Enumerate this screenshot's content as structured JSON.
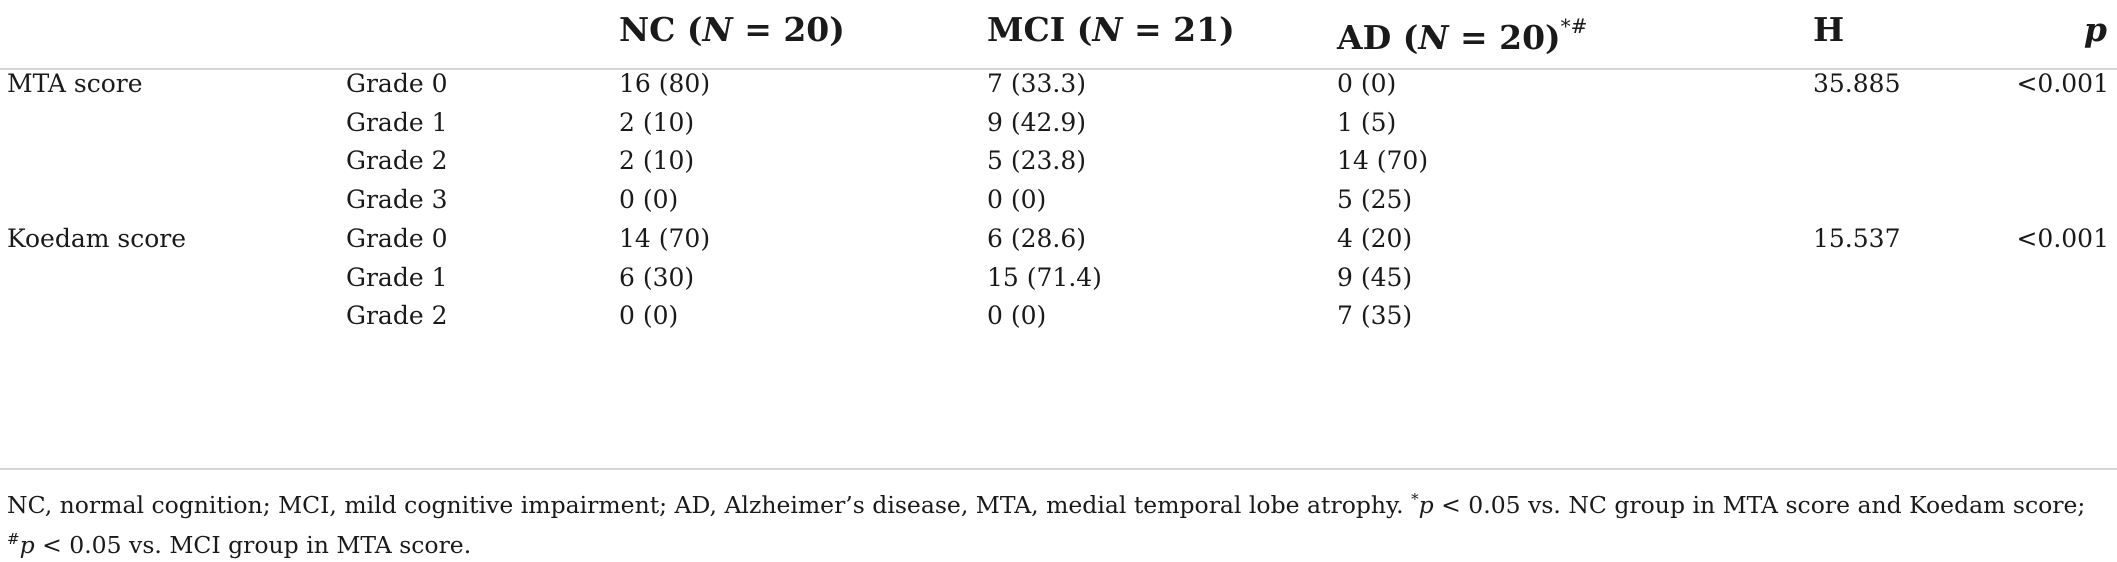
{
  "table": {
    "headers": {
      "nc": {
        "label": "NC (",
        "n_var": "N",
        "n_rest": " = 20)"
      },
      "mci": {
        "label": "MCI (",
        "n_var": "N",
        "n_rest": " = 21)"
      },
      "ad": {
        "label": "AD (",
        "n_var": "N",
        "n_rest": " = 20)",
        "marks": "*#"
      },
      "h": "H",
      "p": "p"
    },
    "rows": [
      {
        "group": "MTA score",
        "grade": "Grade 0",
        "nc": "16 (80)",
        "mci": "7 (33.3)",
        "ad": "0 (0)",
        "h": "35.885",
        "p": "<0.001"
      },
      {
        "group": "",
        "grade": "Grade 1",
        "nc": "2 (10)",
        "mci": "9 (42.9)",
        "ad": "1 (5)",
        "h": "",
        "p": ""
      },
      {
        "group": "",
        "grade": "Grade 2",
        "nc": "2 (10)",
        "mci": "5 (23.8)",
        "ad": "14 (70)",
        "h": "",
        "p": ""
      },
      {
        "group": "",
        "grade": "Grade 3",
        "nc": "0 (0)",
        "mci": "0 (0)",
        "ad": "5 (25)",
        "h": "",
        "p": ""
      },
      {
        "group": "Koedam score",
        "grade": "Grade 0",
        "nc": "14 (70)",
        "mci": "6 (28.6)",
        "ad": "4 (20)",
        "h": "15.537",
        "p": "<0.001"
      },
      {
        "group": "",
        "grade": "Grade 1",
        "nc": "6 (30)",
        "mci": "15 (71.4)",
        "ad": "9 (45)",
        "h": "",
        "p": ""
      },
      {
        "group": "",
        "grade": "Grade 2",
        "nc": "0 (0)",
        "mci": "0 (0)",
        "ad": "7 (35)",
        "h": "",
        "p": ""
      }
    ]
  },
  "footnote": {
    "part1": "NC, normal cognition; MCI, mild cognitive impairment; AD, Alzheimer’s disease, MTA, medial temporal lobe atrophy. ",
    "mark1": "*",
    "p1": "p",
    "part2": " < 0.05 vs. NC group in MTA score and Koedam score; ",
    "mark2": "#",
    "p2": "p",
    "part3": " < 0.05 vs. MCI group in MTA score."
  }
}
